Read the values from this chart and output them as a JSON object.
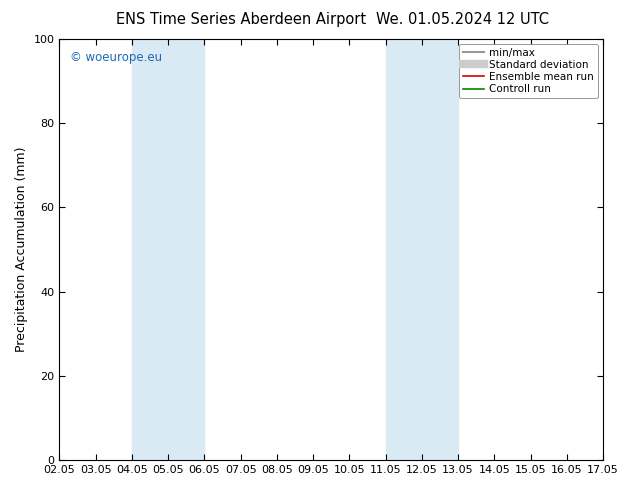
{
  "title": "ENS Time Series Aberdeen Airport",
  "title2": "We. 01.05.2024 12 UTC",
  "ylabel": "Precipitation Accumulation (mm)",
  "ylim": [
    0,
    100
  ],
  "xtick_labels": [
    "02.05",
    "03.05",
    "04.05",
    "05.05",
    "06.05",
    "07.05",
    "08.05",
    "09.05",
    "10.05",
    "11.05",
    "12.05",
    "13.05",
    "14.05",
    "15.05",
    "16.05",
    "17.05"
  ],
  "ytick_values": [
    0,
    20,
    40,
    60,
    80,
    100
  ],
  "shaded_regions": [
    {
      "xstart": 2,
      "xend": 4,
      "color": "#daeaf5"
    },
    {
      "xstart": 9,
      "xend": 11,
      "color": "#daeaf5"
    }
  ],
  "watermark": "© woeurope.eu",
  "watermark_color": "#1a6bb5",
  "legend_entries": [
    {
      "label": "min/max",
      "color": "#999999",
      "lw": 1.5,
      "ls": "-"
    },
    {
      "label": "Standard deviation",
      "color": "#cccccc",
      "lw": 6,
      "ls": "-"
    },
    {
      "label": "Ensemble mean run",
      "color": "#dd0000",
      "lw": 1.2,
      "ls": "-"
    },
    {
      "label": "Controll run",
      "color": "#008800",
      "lw": 1.2,
      "ls": "-"
    }
  ],
  "background_color": "#ffffff",
  "spine_color": "#000000",
  "tick_color": "#000000",
  "font_size": 10,
  "title_font_size": 10.5
}
